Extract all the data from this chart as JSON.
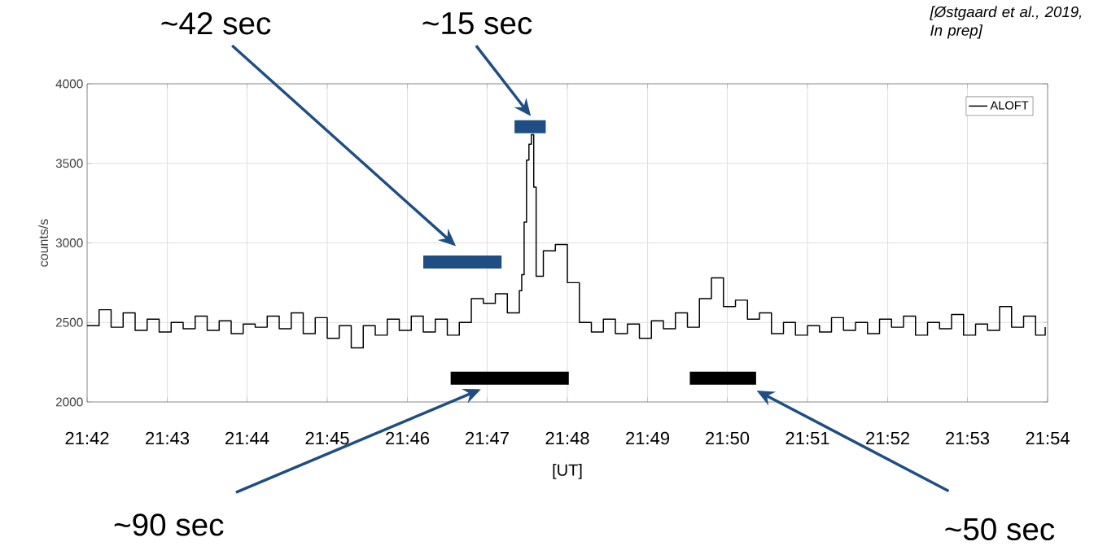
{
  "chart_data": {
    "type": "step",
    "ylabel": "counts/s",
    "xlabel": "[UT]",
    "annotations": [
      "[Østgaard et al., 2019, In prep]",
      "~42 sec",
      "~15 sec",
      "~90 sec",
      "~50 sec"
    ],
    "x": [
      21.7,
      21.7025,
      21.705,
      21.7075,
      21.71,
      21.7125,
      21.715,
      21.7175,
      21.72,
      21.7225,
      21.725,
      21.7275,
      21.73,
      21.7325,
      21.735,
      21.7375,
      21.74,
      21.7425,
      21.745,
      21.7475,
      21.75,
      21.7525,
      21.755,
      21.7575,
      21.76,
      21.7625,
      21.765,
      21.7675,
      21.77,
      21.7725,
      21.775,
      21.7775,
      21.78,
      21.7825,
      21.785,
      21.7875,
      21.79,
      21.7905,
      21.791,
      21.7915,
      21.792,
      21.7925,
      21.793,
      21.7935,
      21.795,
      21.7975,
      21.8,
      21.8025,
      21.805,
      21.8075,
      21.81,
      21.8125,
      21.815,
      21.8175,
      21.82,
      21.8225,
      21.825,
      21.8275,
      21.83,
      21.8325,
      21.835,
      21.8375,
      21.84,
      21.8425,
      21.845,
      21.8475,
      21.85,
      21.8525,
      21.855,
      21.8575,
      21.86,
      21.8625,
      21.865,
      21.8675,
      21.87,
      21.8725,
      21.875,
      21.8775,
      21.88,
      21.8825,
      21.885,
      21.8875,
      21.89,
      21.8925,
      21.895,
      21.8975,
      21.8995
    ],
    "series": [
      {
        "name": "ALOFT",
        "color": "#000000",
        "values": [
          2480,
          2580,
          2470,
          2560,
          2450,
          2520,
          2440,
          2500,
          2460,
          2540,
          2450,
          2510,
          2430,
          2490,
          2470,
          2540,
          2460,
          2560,
          2430,
          2530,
          2400,
          2480,
          2340,
          2480,
          2420,
          2520,
          2450,
          2540,
          2440,
          2520,
          2420,
          2500,
          2650,
          2620,
          2680,
          2560,
          2700,
          2800,
          3130,
          3520,
          3620,
          3680,
          3350,
          2790,
          2950,
          2990,
          2750,
          2500,
          2440,
          2520,
          2430,
          2490,
          2400,
          2510,
          2460,
          2560,
          2470,
          2650,
          2780,
          2600,
          2640,
          2520,
          2560,
          2430,
          2500,
          2420,
          2480,
          2440,
          2530,
          2450,
          2500,
          2430,
          2520,
          2470,
          2540,
          2420,
          2500,
          2460,
          2550,
          2420,
          2490,
          2450,
          2600,
          2470,
          2540,
          2420,
          2470
        ]
      },
      {
        "type": "line",
        "color": "#1f4e84",
        "x": [
          21.77,
          21.7863
        ],
        "values": [
          2880,
          2880
        ]
      },
      {
        "type": "line",
        "color": "#1f4e84",
        "x": [
          21.789,
          21.7955
        ],
        "values": [
          3730,
          3730
        ]
      },
      {
        "type": "line",
        "color": "#000000",
        "x": [
          21.7757,
          21.8003
        ],
        "values": [
          2150,
          2150
        ]
      },
      {
        "type": "line",
        "color": "#000000",
        "x": [
          21.8255,
          21.8393
        ],
        "values": [
          2150,
          2150
        ]
      }
    ],
    "xlim": [
      21.7,
      21.9
    ],
    "ylim": [
      2000,
      4000
    ],
    "xticks": [
      {
        "value": 21.7,
        "label": "21:42"
      },
      {
        "value": 21.7167,
        "label": "21:43"
      },
      {
        "value": 21.7333,
        "label": "21:44"
      },
      {
        "value": 21.75,
        "label": "21:45"
      },
      {
        "value": 21.7667,
        "label": "21:46"
      },
      {
        "value": 21.7833,
        "label": "21:47"
      },
      {
        "value": 21.8,
        "label": "21:48"
      },
      {
        "value": 21.8167,
        "label": "21:49"
      },
      {
        "value": 21.8333,
        "label": "21:50"
      },
      {
        "value": 21.85,
        "label": "21:51"
      },
      {
        "value": 21.8667,
        "label": "21:52"
      },
      {
        "value": 21.8833,
        "label": "21:53"
      },
      {
        "value": 21.9,
        "label": "21:54"
      }
    ],
    "yticks": [
      2000,
      2500,
      3000,
      3500,
      4000
    ],
    "grid": true,
    "legend": "top right",
    "marker": "none",
    "line_style": "solid"
  }
}
